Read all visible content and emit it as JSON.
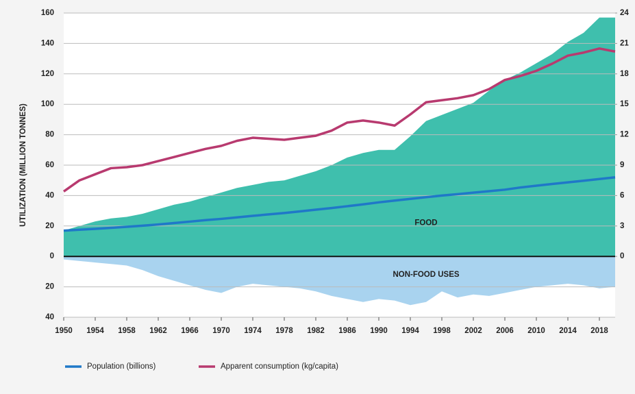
{
  "chart_data": {
    "type": "area-line",
    "y_label": "UTILIZATION (MILLION TONNES)",
    "x": [
      1950,
      1952,
      1954,
      1956,
      1958,
      1960,
      1962,
      1964,
      1966,
      1968,
      1970,
      1972,
      1974,
      1976,
      1978,
      1980,
      1982,
      1984,
      1986,
      1988,
      1990,
      1992,
      1994,
      1996,
      1998,
      2000,
      2002,
      2004,
      2006,
      2008,
      2010,
      2012,
      2014,
      2016,
      2018,
      2020
    ],
    "xlim": [
      1950,
      2020
    ],
    "xticks": [
      1950,
      1954,
      1958,
      1962,
      1966,
      1970,
      1974,
      1978,
      1982,
      1986,
      1990,
      1994,
      1998,
      2002,
      2006,
      2010,
      2014,
      2018
    ],
    "ylim": [
      -40,
      160
    ],
    "yticks": [
      160,
      140,
      120,
      100,
      80,
      60,
      40,
      20,
      0,
      {
        "value": -20,
        "label": "20"
      },
      {
        "value": -40,
        "label": "40"
      }
    ],
    "y2lim": [
      -6,
      24
    ],
    "y2ticks": [
      0,
      3,
      6,
      9,
      12,
      15,
      18,
      21,
      24
    ],
    "grid": true,
    "series": [
      {
        "name": "FOOD",
        "kind": "area",
        "color": "#3fbfad",
        "values": [
          17,
          20,
          23,
          25,
          26,
          28,
          31,
          34,
          36,
          39,
          42,
          45,
          47,
          49,
          50,
          53,
          56,
          60,
          65,
          68,
          70,
          70,
          79,
          89,
          93,
          97,
          101,
          109,
          116,
          121,
          127,
          133,
          141,
          147,
          157,
          157
        ]
      },
      {
        "name": "NON-FOOD USES",
        "kind": "area",
        "color": "#a9d3ef",
        "values": [
          -2,
          -3,
          -4,
          -5,
          -6,
          -9,
          -13,
          -16,
          -19,
          -22,
          -24,
          -20,
          -18,
          -19,
          -20,
          -21,
          -23,
          -26,
          -28,
          -30,
          -28,
          -29,
          -32,
          -30,
          -23,
          -27,
          -25,
          -26,
          -24,
          -22,
          -20,
          -19,
          -18,
          -19,
          -21,
          -20
        ]
      },
      {
        "name": "Population (billions)",
        "kind": "line",
        "axis": "y2",
        "color": "#1f78c8",
        "values": [
          2.54,
          2.63,
          2.72,
          2.82,
          2.92,
          3.03,
          3.15,
          3.29,
          3.43,
          3.58,
          3.7,
          3.85,
          4.0,
          4.14,
          4.28,
          4.44,
          4.61,
          4.77,
          4.95,
          5.13,
          5.33,
          5.5,
          5.67,
          5.84,
          6.0,
          6.14,
          6.29,
          6.43,
          6.58,
          6.8,
          6.97,
          7.14,
          7.3,
          7.46,
          7.63,
          7.8
        ]
      },
      {
        "name": "Apparent consumption (kg/capita)",
        "kind": "line",
        "axis": "y2",
        "color": "#b83a6f",
        "values": [
          6.4,
          7.5,
          8.1,
          8.7,
          8.8,
          9.0,
          9.4,
          9.8,
          10.2,
          10.6,
          10.9,
          11.4,
          11.7,
          11.6,
          11.5,
          11.7,
          11.9,
          12.4,
          13.2,
          13.4,
          13.2,
          12.9,
          14.0,
          15.2,
          15.4,
          15.6,
          15.9,
          16.5,
          17.4,
          17.8,
          18.3,
          19.0,
          19.8,
          20.1,
          20.5,
          20.2
        ]
      }
    ]
  }
}
